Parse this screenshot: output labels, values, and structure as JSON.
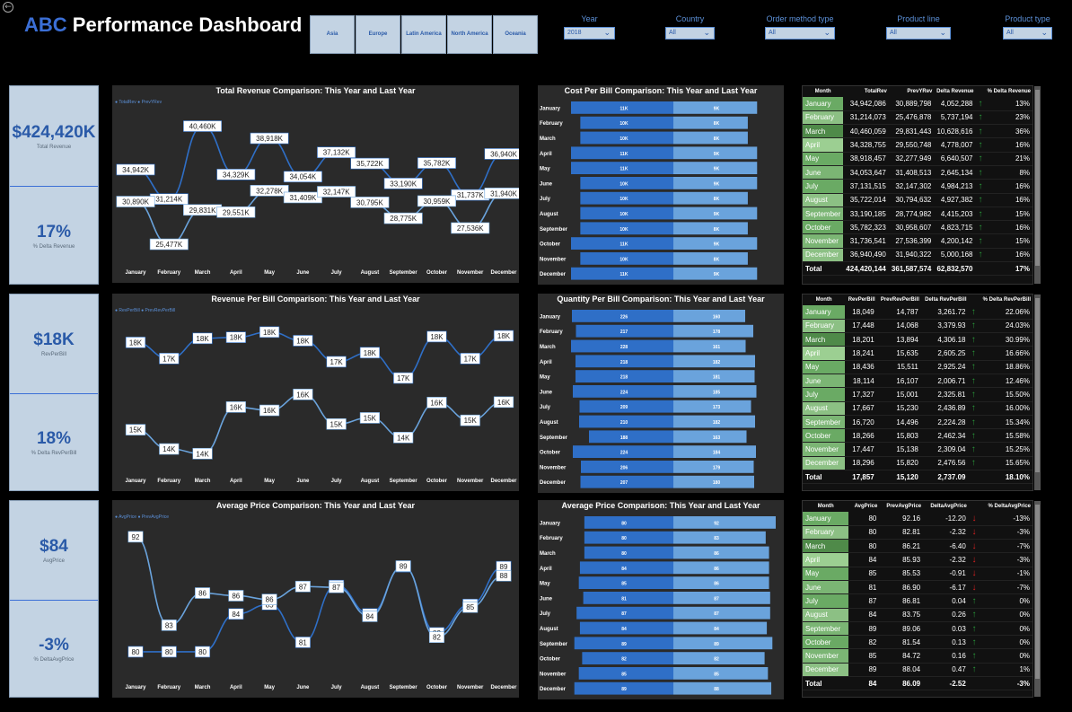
{
  "header": {
    "title_abc": "ABC",
    "title_rest": " Performance Dashboard",
    "back_icon": "←"
  },
  "regions": [
    "Asia",
    "Europe",
    "Latin America",
    "North America",
    "Oceania"
  ],
  "slicers": [
    {
      "label": "Year",
      "value": "2018"
    },
    {
      "label": "Country",
      "value": "All"
    },
    {
      "label": "Order method type",
      "value": "All"
    },
    {
      "label": "Product line",
      "value": "All"
    },
    {
      "label": "Product type",
      "value": "All"
    }
  ],
  "kpis": [
    {
      "value": "$424,420K",
      "label": "Total Revenue",
      "delta": "17%",
      "delta_label": "% Delta Revenue"
    },
    {
      "value": "$18K",
      "label": "RevPerBill",
      "delta": "18%",
      "delta_label": "% Delta RevPerBill"
    },
    {
      "value": "$84",
      "label": "AvgPrice",
      "delta": "-3%",
      "delta_label": "% DeltaAvgPrice"
    }
  ],
  "months": [
    "January",
    "February",
    "March",
    "April",
    "May",
    "June",
    "July",
    "August",
    "September",
    "October",
    "November",
    "December"
  ],
  "colors": {
    "this_year": "#2f6fc7",
    "last_year": "#6aa3dc",
    "panel": "#2a2a2a",
    "kpi": "#c3d3e3",
    "accent": "#3b6fd6",
    "up": "#2a9a3a",
    "down": "#e02020",
    "green_cell": "#6aaa64"
  },
  "chart_data": [
    {
      "type": "line",
      "title": "Total Revenue Comparison: This Year and Last Year",
      "legend": [
        "TotalRev",
        "PrevYRev"
      ],
      "categories": [
        "January",
        "February",
        "March",
        "April",
        "May",
        "June",
        "July",
        "August",
        "September",
        "October",
        "November",
        "December"
      ],
      "series": [
        {
          "name": "TotalRev",
          "values": [
            34942,
            31214,
            40460,
            34329,
            38918,
            34054,
            37132,
            35722,
            33190,
            35782,
            31737,
            36940
          ],
          "labels": [
            "34,942K",
            "31,214K",
            "40,460K",
            "34,329K",
            "38,918K",
            "34,054K",
            "37,132K",
            "35,722K",
            "33,190K",
            "35,782K",
            "31,737K",
            "36,940K"
          ]
        },
        {
          "name": "PrevYRev",
          "values": [
            30890,
            25477,
            29831,
            29551,
            32278,
            31409,
            32147,
            30795,
            28775,
            30959,
            27536,
            31940
          ],
          "labels": [
            "30,890K",
            "25,477K",
            "29,831K",
            "29,551K",
            "32,278K",
            "31,409K",
            "32,147K",
            "30,795K",
            "28,775K",
            "30,959K",
            "27,536K",
            "31,940K"
          ]
        }
      ],
      "ylim": [
        24000,
        42000
      ]
    },
    {
      "type": "line",
      "title": "Revenue Per Bill Comparison: This Year and Last Year",
      "legend": [
        "RevPerBill",
        "PrevRevPerBill"
      ],
      "categories": [
        "January",
        "February",
        "March",
        "April",
        "May",
        "June",
        "July",
        "August",
        "September",
        "October",
        "November",
        "December"
      ],
      "series": [
        {
          "name": "RevPerBill",
          "values": [
            18.049,
            17.448,
            18.201,
            18.241,
            18.436,
            18.114,
            17.327,
            17.667,
            16.72,
            18.266,
            17.447,
            18.296
          ],
          "labels": [
            "18K",
            "17K",
            "18K",
            "18K",
            "18K",
            "18K",
            "17K",
            "18K",
            "17K",
            "18K",
            "17K",
            "18K"
          ]
        },
        {
          "name": "PrevRevPerBill",
          "values": [
            14.787,
            14.068,
            13.894,
            15.635,
            15.511,
            16.107,
            15.001,
            15.23,
            14.496,
            15.803,
            15.138,
            15.82
          ],
          "labels": [
            "15K",
            "14K",
            "14K",
            "16K",
            "16K",
            "16K",
            "15K",
            "15K",
            "14K",
            "16K",
            "15K",
            "16K"
          ]
        }
      ],
      "ylim": [
        13.5,
        18.8
      ]
    },
    {
      "type": "line",
      "title": "Average Price Comparison: This Year and Last Year",
      "legend": [
        "AvgPrice",
        "PrevAvgPrice"
      ],
      "categories": [
        "January",
        "February",
        "March",
        "April",
        "May",
        "June",
        "July",
        "August",
        "September",
        "October",
        "November",
        "December"
      ],
      "series": [
        {
          "name": "AvgPrice",
          "values": [
            80,
            80,
            80,
            84,
            85,
            81,
            87,
            84,
            89,
            82,
            85,
            89
          ],
          "labels": [
            "80",
            "80",
            "80",
            "84",
            "85",
            "81",
            "87",
            "84",
            "89",
            "82",
            "85",
            "89"
          ]
        },
        {
          "name": "PrevAvgPrice",
          "values": [
            92.16,
            82.81,
            86.21,
            85.93,
            85.53,
            86.9,
            86.81,
            83.75,
            89.06,
            81.54,
            84.72,
            88.04
          ],
          "labels": [
            "92",
            "83",
            "86",
            "86",
            "86",
            "87",
            "87",
            "84",
            "89",
            "82",
            "85",
            "88"
          ]
        }
      ],
      "ylim": [
        78,
        93
      ]
    },
    {
      "type": "bar",
      "title": "Cost Per Bill Comparison: This Year and Last Year",
      "categories": [
        "January",
        "February",
        "March",
        "April",
        "May",
        "June",
        "July",
        "August",
        "September",
        "October",
        "November",
        "December"
      ],
      "series": [
        {
          "name": "This Year",
          "values": [
            11,
            10,
            10,
            11,
            11,
            10,
            10,
            10,
            10,
            11,
            10,
            11
          ],
          "labels": [
            "11K",
            "10K",
            "10K",
            "11K",
            "11K",
            "10K",
            "10K",
            "10K",
            "10K",
            "11K",
            "10K",
            "11K"
          ]
        },
        {
          "name": "Last Year",
          "values": [
            9,
            8,
            8,
            9,
            9,
            9,
            8,
            9,
            8,
            9,
            8,
            9
          ],
          "labels": [
            "9K",
            "8K",
            "8K",
            "9K",
            "9K",
            "9K",
            "8K",
            "9K",
            "8K",
            "9K",
            "8K",
            "9K"
          ]
        }
      ]
    },
    {
      "type": "bar",
      "title": "Quantity Per Bill Comparison: This Year and Last Year",
      "categories": [
        "January",
        "February",
        "March",
        "April",
        "May",
        "June",
        "July",
        "August",
        "September",
        "October",
        "November",
        "December"
      ],
      "series": [
        {
          "name": "This Year",
          "values": [
            226,
            217,
            228,
            218,
            218,
            224,
            209,
            210,
            188,
            224,
            206,
            207
          ],
          "labels": [
            "226",
            "217",
            "228",
            "218",
            "218",
            "224",
            "209",
            "210",
            "188",
            "224",
            "206",
            "207"
          ]
        },
        {
          "name": "Last Year",
          "values": [
            160,
            178,
            161,
            182,
            181,
            185,
            173,
            182,
            163,
            184,
            179,
            180
          ],
          "labels": [
            "160",
            "178",
            "161",
            "182",
            "181",
            "185",
            "173",
            "182",
            "163",
            "184",
            "179",
            "180"
          ]
        }
      ]
    },
    {
      "type": "bar",
      "title": "Average Price Comparison: This Year and Last Year",
      "categories": [
        "January",
        "February",
        "March",
        "April",
        "May",
        "June",
        "July",
        "August",
        "September",
        "October",
        "November",
        "December"
      ],
      "series": [
        {
          "name": "This Year",
          "values": [
            80,
            80,
            80,
            84,
            85,
            81,
            87,
            84,
            89,
            82,
            85,
            89
          ],
          "labels": [
            "80",
            "80",
            "80",
            "84",
            "85",
            "81",
            "87",
            "84",
            "89",
            "82",
            "85",
            "89"
          ]
        },
        {
          "name": "Last Year",
          "values": [
            92,
            83,
            86,
            86,
            86,
            87,
            87,
            84,
            89,
            82,
            85,
            88
          ],
          "labels": [
            "92",
            "83",
            "86",
            "86",
            "86",
            "87",
            "87",
            "84",
            "89",
            "82",
            "85",
            "88"
          ]
        }
      ]
    }
  ],
  "tables": [
    {
      "headers": [
        "Month",
        "TotalRev",
        "PrevYRev",
        "Delta Revenue",
        "",
        "% Delta Revenue"
      ],
      "rows": [
        [
          "January",
          "34,942,086",
          "30,889,798",
          "4,052,288",
          "up",
          "13%"
        ],
        [
          "February",
          "31,214,073",
          "25,476,878",
          "5,737,194",
          "up",
          "23%"
        ],
        [
          "March",
          "40,460,059",
          "29,831,443",
          "10,628,616",
          "up",
          "36%"
        ],
        [
          "April",
          "34,328,755",
          "29,550,748",
          "4,778,007",
          "up",
          "16%"
        ],
        [
          "May",
          "38,918,457",
          "32,277,949",
          "6,640,507",
          "up",
          "21%"
        ],
        [
          "June",
          "34,053,647",
          "31,408,513",
          "2,645,134",
          "up",
          "8%"
        ],
        [
          "July",
          "37,131,515",
          "32,147,302",
          "4,984,213",
          "up",
          "16%"
        ],
        [
          "August",
          "35,722,014",
          "30,794,632",
          "4,927,382",
          "up",
          "16%"
        ],
        [
          "September",
          "33,190,185",
          "28,774,982",
          "4,415,203",
          "up",
          "15%"
        ],
        [
          "October",
          "35,782,323",
          "30,958,607",
          "4,823,715",
          "up",
          "16%"
        ],
        [
          "November",
          "31,736,541",
          "27,536,399",
          "4,200,142",
          "up",
          "15%"
        ],
        [
          "December",
          "36,940,490",
          "31,940,322",
          "5,000,168",
          "up",
          "16%"
        ]
      ],
      "total": [
        "Total",
        "424,420,144",
        "361,587,574",
        "62,832,570",
        "",
        "17%"
      ]
    },
    {
      "headers": [
        "Month",
        "RevPerBill",
        "PrevRevPerBill",
        "Delta RevPerBill",
        "",
        "% Delta RevPerBill"
      ],
      "rows": [
        [
          "January",
          "18,049",
          "14,787",
          "3,261.72",
          "up",
          "22.06%"
        ],
        [
          "February",
          "17,448",
          "14,068",
          "3,379.93",
          "up",
          "24.03%"
        ],
        [
          "March",
          "18,201",
          "13,894",
          "4,306.18",
          "up",
          "30.99%"
        ],
        [
          "April",
          "18,241",
          "15,635",
          "2,605.25",
          "up",
          "16.66%"
        ],
        [
          "May",
          "18,436",
          "15,511",
          "2,925.24",
          "up",
          "18.86%"
        ],
        [
          "June",
          "18,114",
          "16,107",
          "2,006.71",
          "up",
          "12.46%"
        ],
        [
          "July",
          "17,327",
          "15,001",
          "2,325.81",
          "up",
          "15.50%"
        ],
        [
          "August",
          "17,667",
          "15,230",
          "2,436.89",
          "up",
          "16.00%"
        ],
        [
          "September",
          "16,720",
          "14,496",
          "2,224.28",
          "up",
          "15.34%"
        ],
        [
          "October",
          "18,266",
          "15,803",
          "2,462.34",
          "up",
          "15.58%"
        ],
        [
          "November",
          "17,447",
          "15,138",
          "2,309.04",
          "up",
          "15.25%"
        ],
        [
          "December",
          "18,296",
          "15,820",
          "2,476.56",
          "up",
          "15.65%"
        ]
      ],
      "total": [
        "Total",
        "17,857",
        "15,120",
        "2,737.09",
        "",
        "18.10%"
      ]
    },
    {
      "headers": [
        "Month",
        "AvgPrice",
        "PrevAvgPrice",
        "DeltaAvgPrice",
        "",
        "% DeltaAvgPrice"
      ],
      "rows": [
        [
          "January",
          "80",
          "92.16",
          "-12.20",
          "down",
          "-13%"
        ],
        [
          "February",
          "80",
          "82.81",
          "-2.32",
          "down",
          "-3%"
        ],
        [
          "March",
          "80",
          "86.21",
          "-6.40",
          "down",
          "-7%"
        ],
        [
          "April",
          "84",
          "85.93",
          "-2.32",
          "down",
          "-3%"
        ],
        [
          "May",
          "85",
          "85.53",
          "-0.91",
          "down",
          "-1%"
        ],
        [
          "June",
          "81",
          "86.90",
          "-6.17",
          "down",
          "-7%"
        ],
        [
          "July",
          "87",
          "86.81",
          "0.04",
          "up",
          "0%"
        ],
        [
          "August",
          "84",
          "83.75",
          "0.26",
          "up",
          "0%"
        ],
        [
          "September",
          "89",
          "89.06",
          "0.03",
          "up",
          "0%"
        ],
        [
          "October",
          "82",
          "81.54",
          "0.13",
          "up",
          "0%"
        ],
        [
          "November",
          "85",
          "84.72",
          "0.16",
          "up",
          "0%"
        ],
        [
          "December",
          "89",
          "88.04",
          "0.47",
          "up",
          "1%"
        ]
      ],
      "total": [
        "Total",
        "84",
        "86.09",
        "-2.52",
        "",
        "-3%"
      ]
    }
  ]
}
